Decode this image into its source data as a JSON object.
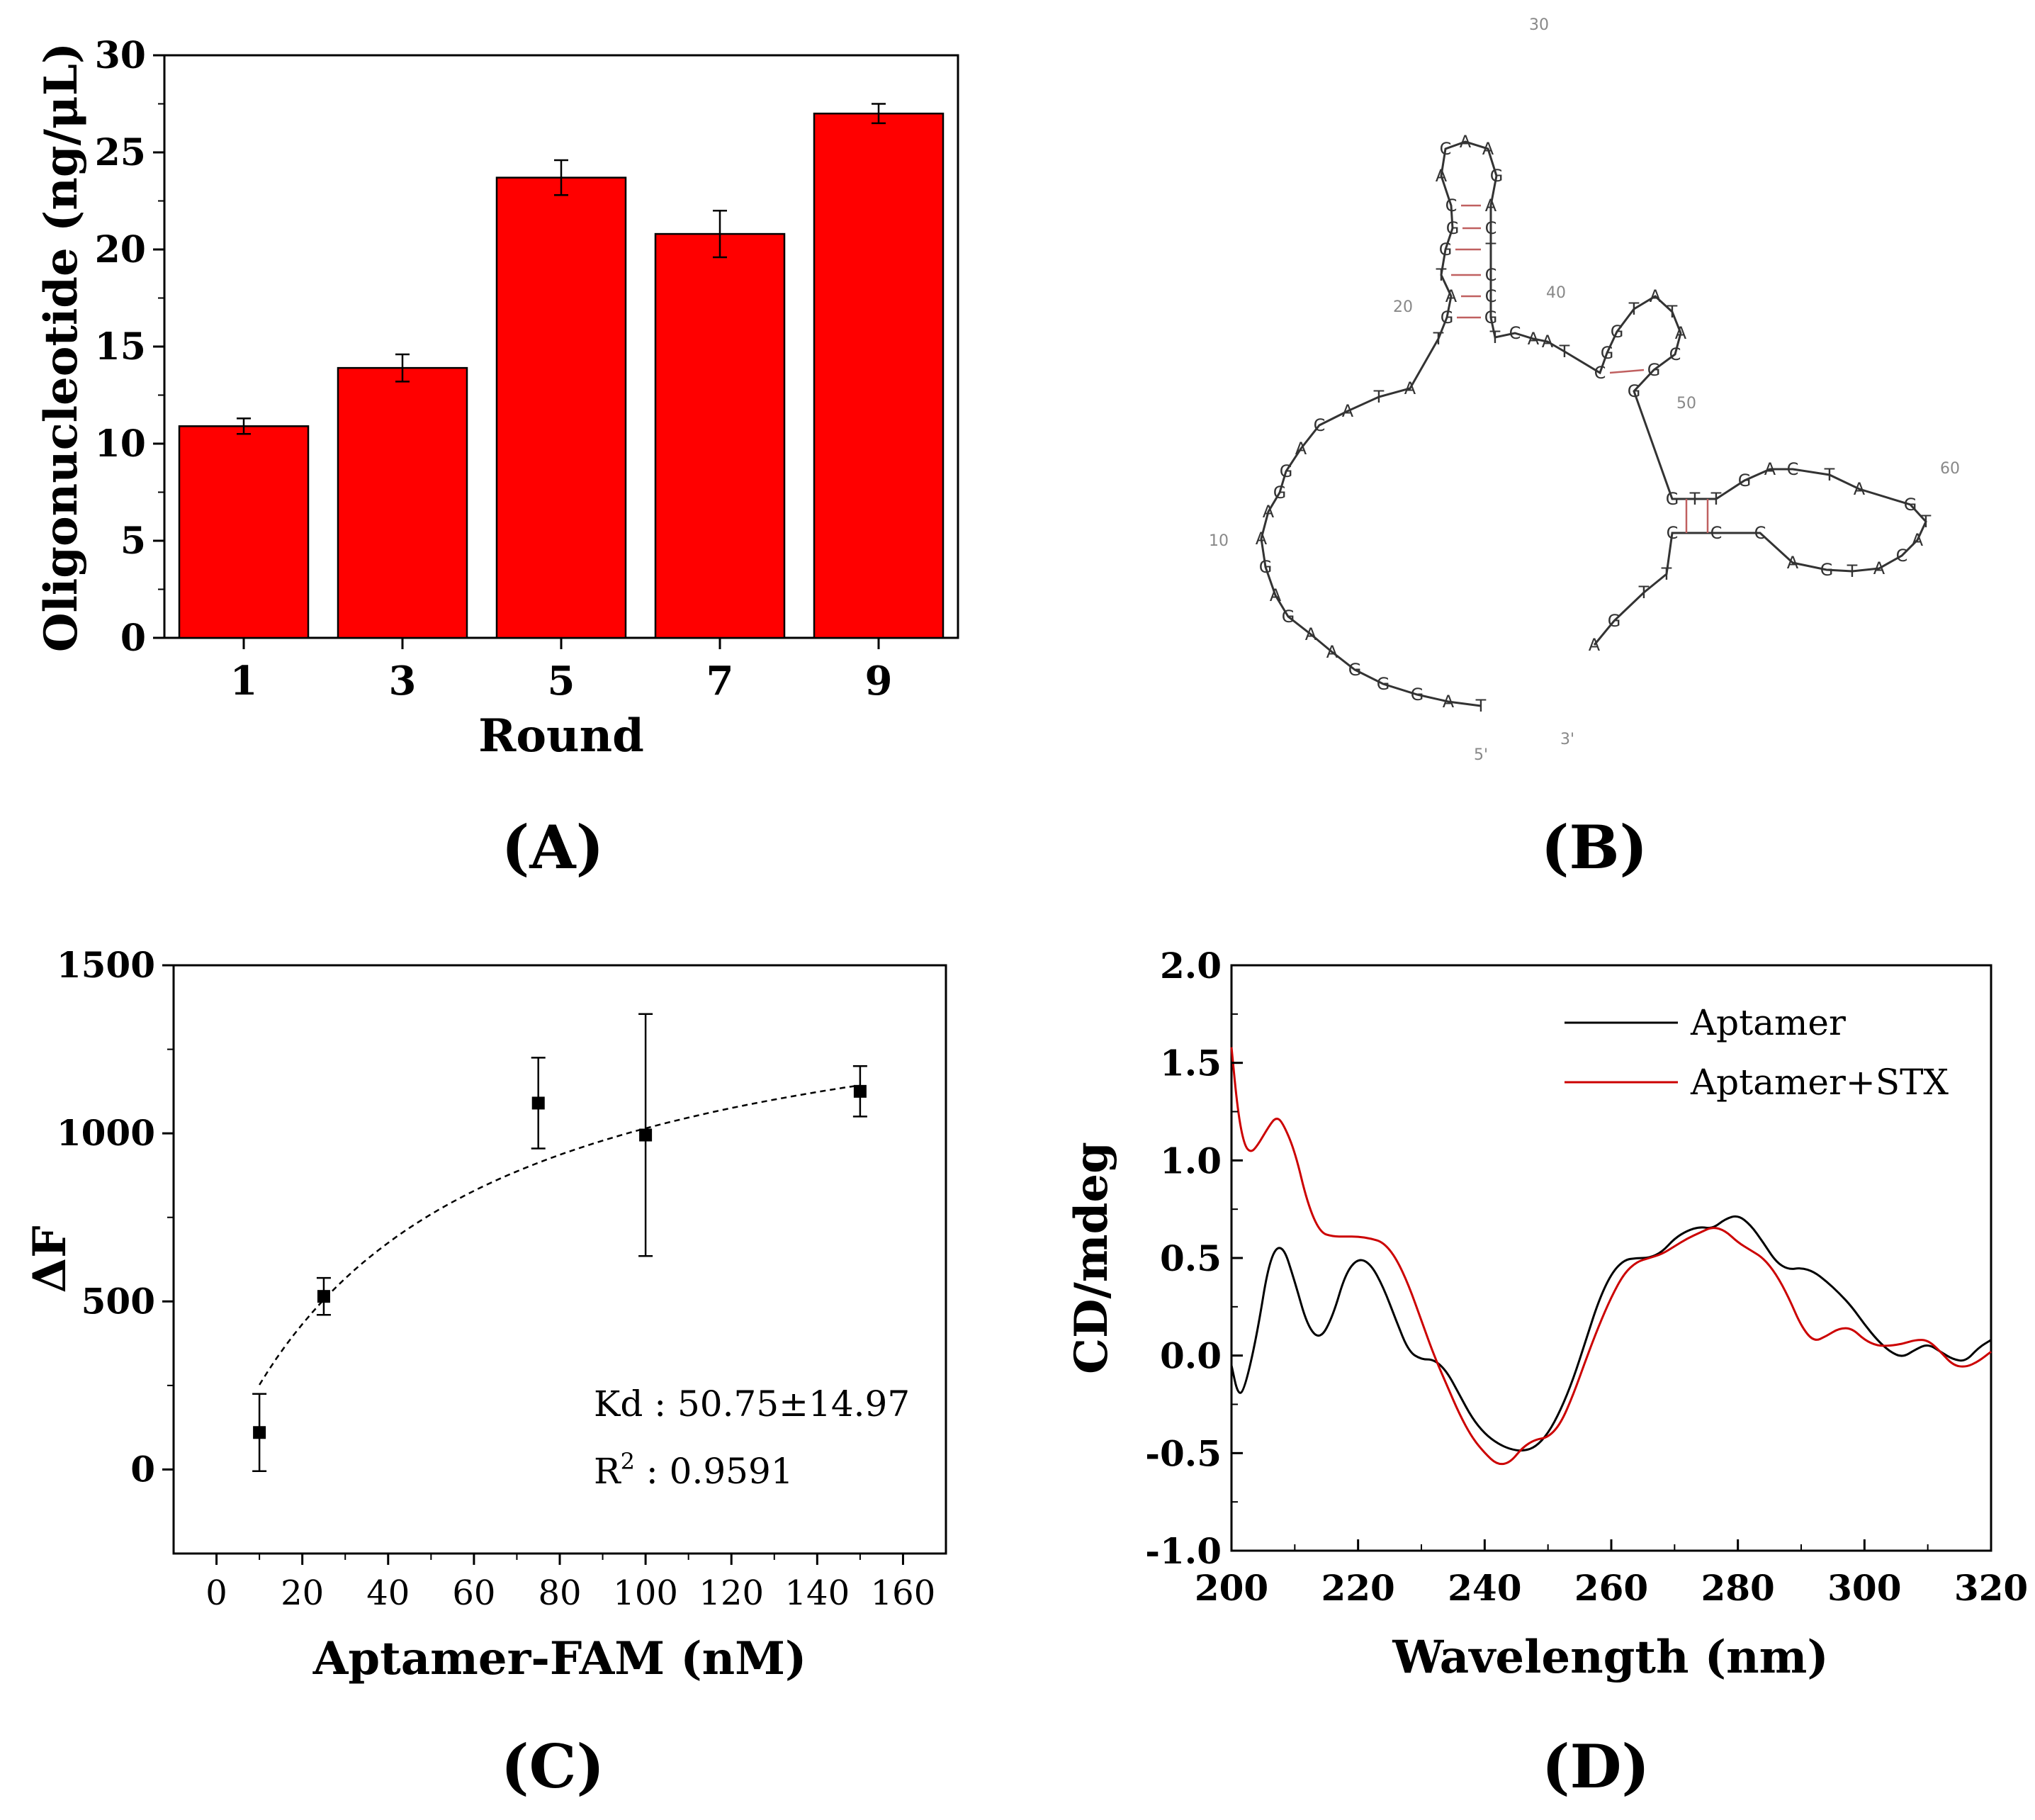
{
  "panel_labels": [
    "(A)",
    "(B)",
    "(C)",
    "(D)"
  ],
  "chart_data": [
    {
      "id": "A",
      "type": "bar",
      "categories": [
        "1",
        "3",
        "5",
        "7",
        "9"
      ],
      "values": [
        10.9,
        13.9,
        23.7,
        20.8,
        27.0
      ],
      "errors": [
        0.4,
        0.7,
        0.9,
        1.2,
        0.5
      ],
      "ylim": [
        0,
        30
      ],
      "yticks": [
        "0",
        "5",
        "10",
        "15",
        "20",
        "25",
        "30"
      ],
      "xlabel": "Round",
      "ylabel": "Oligonucleotide (ng/μL)",
      "color": "#ff0000"
    },
    {
      "id": "C",
      "type": "scatter",
      "x": [
        10,
        25,
        75,
        100,
        150
      ],
      "y": [
        110,
        515,
        1090,
        995,
        1125
      ],
      "errors": [
        115,
        55,
        135,
        360,
        75
      ],
      "fit": {
        "kd": 50.75,
        "bmax": 1530
      },
      "xlim": [
        -10,
        170
      ],
      "ylim": [
        -250,
        1500
      ],
      "xticks": [
        "0",
        "20",
        "40",
        "60",
        "80",
        "100",
        "120",
        "140",
        "160"
      ],
      "yticks": [
        "0",
        "500",
        "1000",
        "1500"
      ],
      "xlabel": "Aptamer-FAM (nM)",
      "ylabel": "ΔF",
      "annotation_kd": "Kd : 50.75±14.97",
      "annotation_r2_prefix": "R",
      "annotation_r2_sup": "2",
      "annotation_r2_value": " : 0.9591"
    },
    {
      "id": "D",
      "type": "line",
      "xlim": [
        200,
        320
      ],
      "ylim": [
        -1.0,
        2.0
      ],
      "xticks": [
        "200",
        "220",
        "240",
        "260",
        "280",
        "300",
        "320"
      ],
      "yticks": [
        "-1.0",
        "-0.5",
        "0.0",
        "0.5",
        "1.0",
        "1.5",
        "2.0"
      ],
      "xlabel": "Wavelength (nm)",
      "ylabel": "CD/mdeg",
      "legend_position": "top-right",
      "series": [
        {
          "name": "Aptamer",
          "color": "#000000",
          "x": [
            200,
            201,
            202,
            204,
            206,
            208,
            210,
            212,
            214,
            216,
            218,
            220,
            222,
            224,
            226,
            228,
            230,
            232,
            234,
            236,
            238,
            240,
            242,
            244,
            246,
            248,
            250,
            252,
            254,
            256,
            258,
            260,
            262,
            264,
            266,
            268,
            270,
            272,
            274,
            276,
            278,
            280,
            282,
            284,
            286,
            288,
            290,
            292,
            294,
            296,
            298,
            300,
            302,
            304,
            306,
            308,
            310,
            312,
            314,
            316,
            318,
            320
          ],
          "y": [
            -0.05,
            -0.2,
            -0.18,
            0.1,
            0.5,
            0.58,
            0.38,
            0.15,
            0.08,
            0.2,
            0.42,
            0.5,
            0.47,
            0.35,
            0.18,
            0.02,
            -0.02,
            -0.02,
            -0.08,
            -0.2,
            -0.32,
            -0.4,
            -0.45,
            -0.48,
            -0.49,
            -0.47,
            -0.4,
            -0.28,
            -0.12,
            0.08,
            0.28,
            0.42,
            0.49,
            0.5,
            0.5,
            0.53,
            0.6,
            0.64,
            0.66,
            0.65,
            0.7,
            0.72,
            0.67,
            0.58,
            0.48,
            0.44,
            0.45,
            0.43,
            0.38,
            0.32,
            0.25,
            0.16,
            0.08,
            0.02,
            -0.01,
            0.03,
            0.06,
            0.02,
            -0.02,
            -0.03,
            0.04,
            0.08
          ]
        },
        {
          "name": "Aptamer+STX",
          "color": "#cc0000",
          "x": [
            200,
            201,
            202,
            203,
            204,
            206,
            207,
            208,
            210,
            212,
            214,
            216,
            218,
            220,
            222,
            224,
            226,
            228,
            230,
            232,
            234,
            236,
            238,
            240,
            242,
            244,
            246,
            248,
            250,
            252,
            254,
            256,
            258,
            260,
            262,
            264,
            266,
            268,
            270,
            272,
            274,
            276,
            278,
            280,
            282,
            284,
            286,
            288,
            290,
            292,
            294,
            296,
            298,
            300,
            302,
            304,
            306,
            308,
            310,
            312,
            314,
            316,
            318,
            320
          ],
          "y": [
            1.58,
            1.25,
            1.08,
            1.04,
            1.07,
            1.18,
            1.22,
            1.2,
            1.05,
            0.78,
            0.63,
            0.61,
            0.61,
            0.61,
            0.6,
            0.58,
            0.5,
            0.36,
            0.18,
            0.0,
            -0.15,
            -0.3,
            -0.42,
            -0.5,
            -0.56,
            -0.55,
            -0.47,
            -0.43,
            -0.42,
            -0.35,
            -0.2,
            -0.02,
            0.15,
            0.3,
            0.42,
            0.48,
            0.5,
            0.52,
            0.56,
            0.6,
            0.63,
            0.66,
            0.64,
            0.58,
            0.54,
            0.5,
            0.42,
            0.3,
            0.15,
            0.07,
            0.1,
            0.14,
            0.14,
            0.08,
            0.05,
            0.05,
            0.06,
            0.08,
            0.08,
            0.02,
            -0.05,
            -0.06,
            -0.03,
            0.02
          ]
        }
      ]
    }
  ],
  "structure": {
    "five_prime": "5'",
    "three_prime": "3'",
    "numbers": [
      "10",
      "20",
      "30",
      "40",
      "50",
      "60"
    ],
    "loop_bases": [
      "T",
      "A",
      "G",
      "G",
      "G",
      "A",
      "A",
      "G",
      "A",
      "G",
      "A",
      "A",
      "G",
      "G",
      "A",
      "C",
      "A",
      "T",
      "A"
    ],
    "stem_left": [
      "T",
      "G",
      "A",
      "T",
      "G",
      "G",
      "C"
    ],
    "stem_right": [
      "A",
      "C",
      "T",
      "C",
      "C",
      "G"
    ],
    "hairpin_loop": [
      "A",
      "C",
      "A",
      "A",
      "G"
    ],
    "link_bases": [
      "T",
      "C",
      "A",
      "A",
      "T"
    ],
    "small_hairpin": [
      "C",
      "G",
      "G",
      "T",
      "A",
      "T",
      "A",
      "C",
      "G"
    ],
    "big_loop": [
      "G",
      "G",
      "T",
      "T",
      "G",
      "A",
      "C",
      "T",
      "A",
      "G",
      "T",
      "A",
      "C",
      "A",
      "T",
      "G",
      "A",
      "C",
      "C"
    ],
    "tail": [
      "C",
      "T",
      "T",
      "G",
      "A"
    ]
  }
}
